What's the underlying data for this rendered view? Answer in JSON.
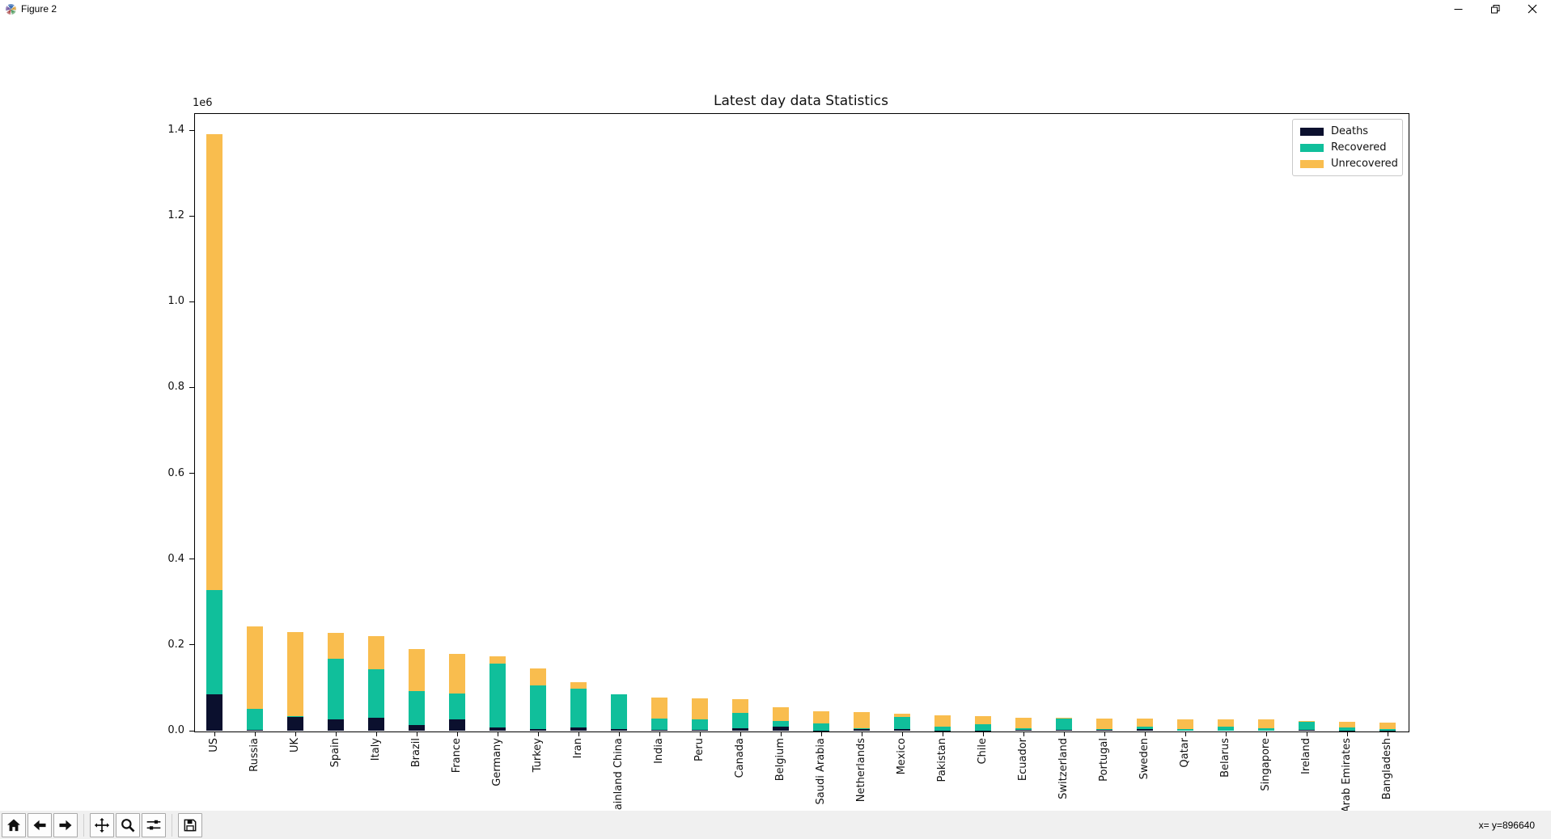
{
  "window": {
    "title": "Figure 2",
    "controls": {
      "minimize": "minimize",
      "restore": "restore",
      "close": "close"
    }
  },
  "chart_data": {
    "type": "bar",
    "stacked": true,
    "title": "Latest day data Statistics",
    "xlabel": "",
    "ylabel": "",
    "offset_text": "1e6",
    "grid": false,
    "legend_position": "upper right",
    "ylim": [
      0,
      1439600
    ],
    "y_tick_values": [
      0,
      200000,
      400000,
      600000,
      800000,
      1000000,
      1200000,
      1400000
    ],
    "y_tick_labels": [
      "0.0",
      "0.2",
      "0.4",
      "0.6",
      "0.8",
      "1.0",
      "1.2",
      "1.4"
    ],
    "categories": [
      "US",
      "Russia",
      "UK",
      "Spain",
      "Italy",
      "Brazil",
      "France",
      "Germany",
      "Turkey",
      "Iran",
      "Mainland China",
      "India",
      "Peru",
      "Canada",
      "Belgium",
      "Saudi Arabia",
      "Netherlands",
      "Mexico",
      "Pakistan",
      "Chile",
      "Ecuador",
      "Switzerland",
      "Portugal",
      "Sweden",
      "Qatar",
      "Belarus",
      "Singapore",
      "Ireland",
      "Arab Emirates",
      "Bangladesh"
    ],
    "series": [
      {
        "name": "Deaths",
        "color": "#0b102e",
        "values": [
          84000,
          2300,
          33200,
          27100,
          31000,
          13200,
          27100,
          7900,
          4000,
          6700,
          4600,
          2600,
          2200,
          5400,
          8800,
          300,
          5500,
          4200,
          800,
          350,
          2300,
          1900,
          1200,
          3500,
          14,
          140,
          21,
          1500,
          200,
          280
        ]
      },
      {
        "name": "Recovered",
        "color": "#10bf9b",
        "values": [
          243000,
          48000,
          1000,
          141000,
          112000,
          78200,
          59600,
          148700,
          102000,
          91500,
          79400,
          26200,
          24300,
          35600,
          14000,
          17100,
          200,
          27000,
          8600,
          14400,
          3400,
          27100,
          3200,
          5000,
          3000,
          8800,
          6000,
          19400,
          7600,
          3900
        ]
      },
      {
        "name": "Unrecovered",
        "color": "#f9bd4e",
        "values": [
          1063000,
          192000,
          195500,
          60600,
          78200,
          98900,
          91500,
          17600,
          38800,
          14600,
          100,
          49200,
          49800,
          32300,
          31000,
          27400,
          37800,
          9200,
          25900,
          19900,
          24900,
          1500,
          23800,
          19400,
          23500,
          16900,
          19700,
          2500,
          13100,
          14700
        ]
      }
    ]
  },
  "toolbar": {
    "buttons": [
      {
        "name": "home"
      },
      {
        "name": "back"
      },
      {
        "name": "forward"
      },
      {
        "name": "pan"
      },
      {
        "name": "zoom-to-rect"
      },
      {
        "name": "configure-subplots"
      },
      {
        "name": "save"
      }
    ],
    "separators_after": [
      2,
      5
    ],
    "status_text": "x= y=896640"
  }
}
